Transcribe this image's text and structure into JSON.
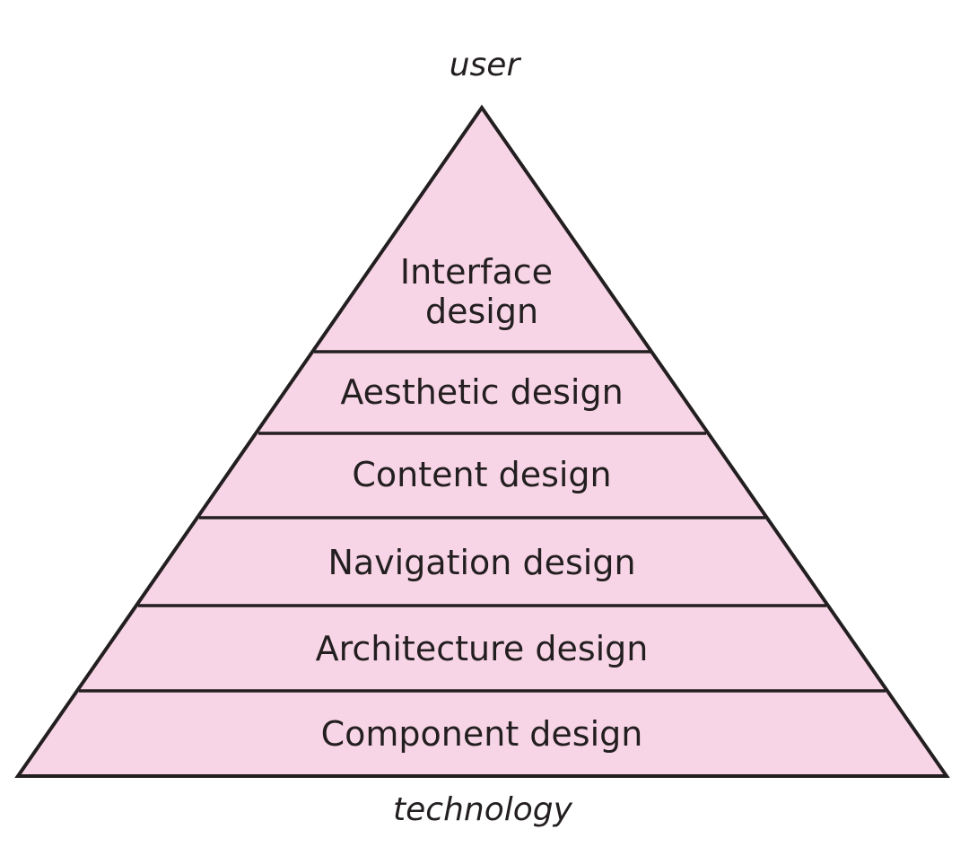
{
  "diagram": {
    "top_label": "user",
    "bottom_label": "technology",
    "layers": [
      {
        "lines": [
          "Interface",
          "design"
        ]
      },
      {
        "lines": [
          "Aesthetic design"
        ]
      },
      {
        "lines": [
          "Content design"
        ]
      },
      {
        "lines": [
          "Navigation design"
        ]
      },
      {
        "lines": [
          "Architecture design"
        ]
      },
      {
        "lines": [
          "Component design"
        ]
      }
    ]
  },
  "colors": {
    "fill": "#f8d5e6",
    "stroke": "#231f20",
    "text": "#231f20"
  }
}
